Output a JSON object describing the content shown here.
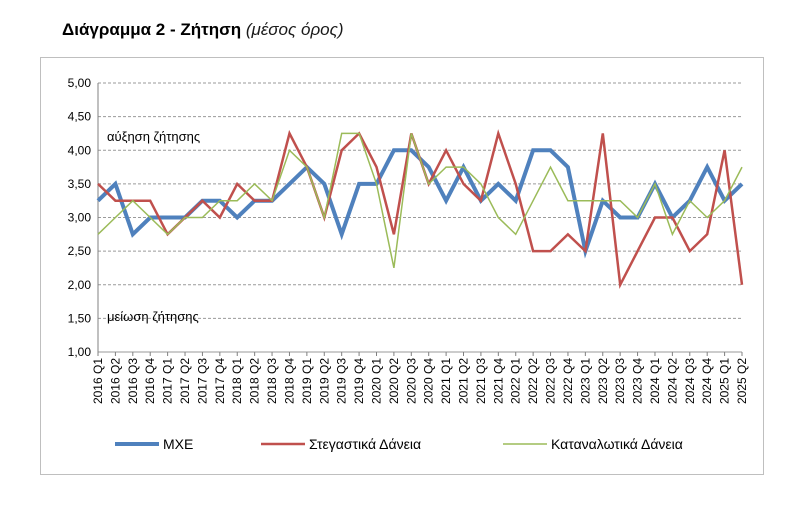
{
  "figure": {
    "title": "Διάγραμμα 2 - Ζήτηση",
    "subtitle": "(μέσος όρος)"
  },
  "chart_data": {
    "type": "line",
    "title": "Διάγραμμα 2 - Ζήτηση (μέσος όρος)",
    "xlabel": "",
    "ylabel": "",
    "ylim": [
      1.0,
      5.0
    ],
    "yticks": [
      "1,00",
      "1,50",
      "2,00",
      "2,50",
      "3,00",
      "3,50",
      "4,00",
      "4,50",
      "5,00"
    ],
    "grid": "horizontal dashed",
    "legend_position": "bottom",
    "annotations": [
      "αύξηση ζήτησης",
      "μείωση ζήτησης"
    ],
    "categories": [
      "2016 Q1",
      "2016 Q2",
      "2016 Q3",
      "2016 Q4",
      "2017 Q1",
      "2017 Q2",
      "2017 Q3",
      "2017 Q4",
      "2018 Q1",
      "2018 Q2",
      "2018 Q3",
      "2018 Q4",
      "2019 Q1",
      "2019 Q2",
      "2019 Q3",
      "2019 Q4",
      "2020 Q1",
      "2020 Q2",
      "2020 Q3",
      "2020 Q4",
      "2021 Q1",
      "2021 Q2",
      "2021 Q3",
      "2021 Q4",
      "2022 Q1",
      "2022 Q2",
      "2022 Q3",
      "2022 Q4",
      "2023 Q1",
      "2023 Q2",
      "2023 Q3",
      "2023 Q4",
      "2024 Q1",
      "2024 Q2",
      "2024 Q3",
      "2024 Q4",
      "2025 Q1",
      "2025 Q2"
    ],
    "series": [
      {
        "name": "ΜΧΕ",
        "color": "#4f81bd",
        "width": 4,
        "values": [
          3.25,
          3.5,
          2.75,
          3.0,
          3.0,
          3.0,
          3.25,
          3.25,
          3.0,
          3.25,
          3.25,
          3.5,
          3.75,
          3.5,
          2.75,
          3.5,
          3.5,
          4.0,
          4.0,
          3.75,
          3.25,
          3.75,
          3.25,
          3.5,
          3.25,
          4.0,
          4.0,
          3.75,
          2.5,
          3.25,
          3.0,
          3.0,
          3.5,
          3.0,
          3.25,
          3.75,
          3.25,
          3.5
        ]
      },
      {
        "name": "Στεγαστικά Δάνεια",
        "color": "#c0504d",
        "width": 2.5,
        "values": [
          3.5,
          3.25,
          3.25,
          3.25,
          2.75,
          3.0,
          3.25,
          3.0,
          3.5,
          3.25,
          3.25,
          4.25,
          3.75,
          3.0,
          4.0,
          4.25,
          3.75,
          2.75,
          4.25,
          3.5,
          4.0,
          3.5,
          3.25,
          4.25,
          3.5,
          2.5,
          2.5,
          2.75,
          2.5,
          4.25,
          2.0,
          2.5,
          3.0,
          3.0,
          2.5,
          2.75,
          4.0,
          2.0
        ]
      },
      {
        "name": "Καταναλωτικά Δάνεια",
        "color": "#9bbb59",
        "width": 1.5,
        "values": [
          2.75,
          3.0,
          3.25,
          3.0,
          2.75,
          3.0,
          3.0,
          3.25,
          3.25,
          3.5,
          3.25,
          4.0,
          3.75,
          3.0,
          4.25,
          4.25,
          3.5,
          2.25,
          4.25,
          3.5,
          3.75,
          3.75,
          3.5,
          3.0,
          2.75,
          3.25,
          3.75,
          3.25,
          3.25,
          3.25,
          3.25,
          3.0,
          3.5,
          2.75,
          3.25,
          3.0,
          3.25,
          3.75
        ]
      }
    ]
  }
}
